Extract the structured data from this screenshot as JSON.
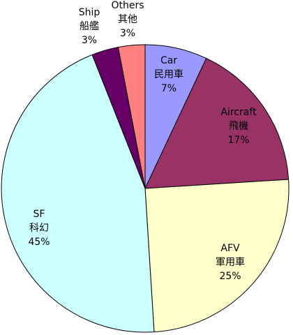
{
  "chart_data": {
    "type": "pie",
    "start_angle_deg": 0,
    "direction": "clockwise",
    "slices": [
      {
        "label_en": "Car",
        "label_zh": "民用車",
        "value": 7,
        "value_label": "7%",
        "color": "#9999ff"
      },
      {
        "label_en": "Aircraft",
        "label_zh": "飛機",
        "value": 17,
        "value_label": "17%",
        "color": "#993366"
      },
      {
        "label_en": "AFV",
        "label_zh": "軍用車",
        "value": 25,
        "value_label": "25%",
        "color": "#ffffcc"
      },
      {
        "label_en": "SF",
        "label_zh": "科幻",
        "value": 45,
        "value_label": "45%",
        "color": "#ccffff"
      },
      {
        "label_en": "Ship",
        "label_zh": "船艦",
        "value": 3,
        "value_label": "3%",
        "color": "#660066"
      },
      {
        "label_en": "Others",
        "label_zh": "其他",
        "value": 3,
        "value_label": "3%",
        "color": "#ff8080"
      }
    ]
  }
}
